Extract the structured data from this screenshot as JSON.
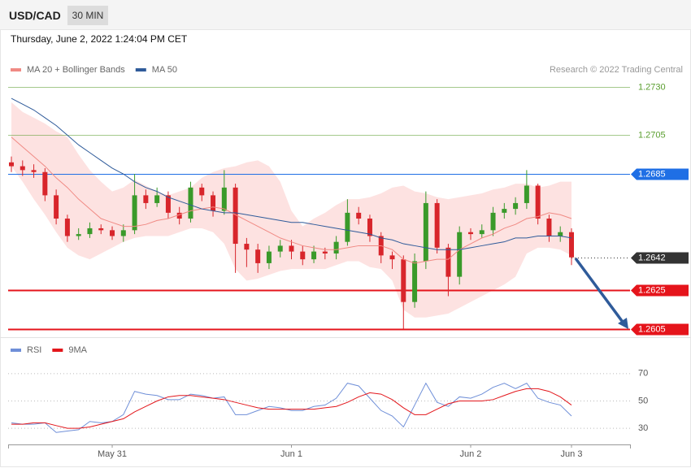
{
  "header": {
    "symbol": "USD/CAD",
    "timeframe": "30 MIN",
    "timestamp": "Thursday, June 2, 2022 1:24:04 PM CET"
  },
  "chart_data": [
    {
      "type": "candlestick",
      "credit": "Research © 2022 Trading Central",
      "categories": [
        null,
        null,
        null,
        null,
        null,
        null,
        null,
        null,
        null,
        "May 31",
        null,
        null,
        null,
        null,
        null,
        null,
        null,
        null,
        null,
        null,
        null,
        null,
        null,
        null,
        null,
        "Jun 1",
        null,
        null,
        null,
        null,
        null,
        null,
        null,
        null,
        null,
        null,
        null,
        null,
        null,
        null,
        null,
        "Jun 2",
        null,
        null,
        null,
        null,
        null,
        null,
        null,
        null,
        "Jun 3"
      ],
      "open": [
        1.2691,
        1.2689,
        1.2687,
        1.2686,
        1.2674,
        1.2662,
        1.2653,
        1.2654,
        1.2657,
        1.2656,
        1.2653,
        1.2656,
        1.2674,
        1.267,
        1.2674,
        1.2665,
        1.2662,
        1.2678,
        1.2674,
        1.2666,
        1.2678,
        1.2649,
        1.2646,
        1.2639,
        1.2645,
        1.2648,
        1.2645,
        1.2641,
        1.2645,
        1.2644,
        1.265,
        1.2665,
        1.2662,
        1.2653,
        1.2643,
        1.2641,
        1.2619,
        1.264,
        1.267,
        1.2647,
        1.2632,
        1.2655,
        1.2654,
        1.2656,
        1.2665,
        1.2667,
        1.267,
        1.2679,
        1.2662,
        1.2653,
        1.2655
      ],
      "high": [
        1.2694,
        1.2692,
        1.269,
        1.2688,
        1.2677,
        1.2664,
        1.2657,
        1.266,
        1.2659,
        1.2658,
        1.2659,
        1.2685,
        1.2677,
        1.2678,
        1.2676,
        1.2668,
        1.2681,
        1.268,
        1.2676,
        1.2687,
        1.268,
        1.2652,
        1.2649,
        1.2648,
        1.2651,
        1.2651,
        1.2648,
        1.2648,
        1.2647,
        1.2653,
        1.2672,
        1.2668,
        1.2664,
        1.2655,
        1.2645,
        1.2643,
        1.2644,
        1.2676,
        1.2672,
        1.2649,
        1.2658,
        1.2657,
        1.2659,
        1.2668,
        1.267,
        1.2673,
        1.2687,
        1.268,
        1.2664,
        1.2658,
        1.2657
      ],
      "low": [
        1.2686,
        1.2684,
        1.2683,
        1.2671,
        1.2659,
        1.265,
        1.2651,
        1.2652,
        1.2654,
        1.2651,
        1.265,
        1.2654,
        1.2667,
        1.2668,
        1.2662,
        1.2659,
        1.266,
        1.2671,
        1.2663,
        1.2664,
        1.2634,
        1.2637,
        1.2634,
        1.2636,
        1.2642,
        1.2641,
        1.2638,
        1.2639,
        1.2641,
        1.2641,
        1.2648,
        1.2659,
        1.265,
        1.2639,
        1.2636,
        1.2605,
        1.2616,
        1.2636,
        1.2644,
        1.2622,
        1.2628,
        1.2651,
        1.2652,
        1.2653,
        1.2662,
        1.2664,
        1.2667,
        1.2659,
        1.265,
        1.265,
        1.2638
      ],
      "close": [
        1.2689,
        1.2687,
        1.2686,
        1.2674,
        1.2662,
        1.2653,
        1.2654,
        1.2657,
        1.2656,
        1.2653,
        1.2656,
        1.2674,
        1.267,
        1.2674,
        1.2665,
        1.2662,
        1.2678,
        1.2674,
        1.2666,
        1.2678,
        1.2649,
        1.2646,
        1.2639,
        1.2645,
        1.2648,
        1.2645,
        1.2641,
        1.2645,
        1.2644,
        1.265,
        1.2665,
        1.2662,
        1.2653,
        1.2643,
        1.2641,
        1.2619,
        1.264,
        1.267,
        1.2647,
        1.2632,
        1.2655,
        1.2654,
        1.2656,
        1.2665,
        1.2667,
        1.267,
        1.2679,
        1.2662,
        1.2653,
        1.2655,
        1.2642
      ],
      "up_color": "#3a9a2a",
      "down_color": "#d8252b",
      "series": [
        {
          "name": "MA 20 + Bollinger Bands",
          "color": "#f08a84",
          "band_color": "#fde2e1",
          "values": [
            1.2704,
            1.2699,
            1.2694,
            1.2689,
            1.2683,
            1.2678,
            1.2672,
            1.2667,
            1.2662,
            1.266,
            1.2658,
            1.2658,
            1.2659,
            1.2661,
            1.2662,
            1.2664,
            1.2666,
            1.2667,
            1.2668,
            1.2667,
            1.2664,
            1.2661,
            1.2658,
            1.2655,
            1.2652,
            1.265,
            1.2648,
            1.2647,
            1.2646,
            1.2646,
            1.2647,
            1.2648,
            1.2648,
            1.2648,
            1.2646,
            1.2641,
            1.2639,
            1.264,
            1.2641,
            1.2641,
            1.2646,
            1.2649,
            1.2652,
            1.2654,
            1.2657,
            1.2659,
            1.2662,
            1.2663,
            1.2665,
            1.2664,
            1.2662
          ],
          "upper": [
            1.2722,
            1.2717,
            1.2714,
            1.2711,
            1.2707,
            1.2704,
            1.2695,
            1.2687,
            1.2681,
            1.2676,
            1.2678,
            1.2682,
            1.2679,
            1.2676,
            1.2674,
            1.2676,
            1.2678,
            1.2683,
            1.2686,
            1.2688,
            1.2689,
            1.2691,
            1.2692,
            1.2689,
            1.2681,
            1.2666,
            1.2658,
            1.2662,
            1.2665,
            1.2669,
            1.2672,
            1.2672,
            1.2673,
            1.2675,
            1.2678,
            1.2679,
            1.2676,
            1.2675,
            1.2673,
            1.2672,
            1.2673,
            1.2674,
            1.2675,
            1.2677,
            1.2678,
            1.268,
            1.268,
            1.2678,
            1.2679,
            1.2681,
            1.2681
          ],
          "lower": [
            1.2689,
            1.2681,
            1.2672,
            1.2664,
            1.2655,
            1.2647,
            1.2643,
            1.2641,
            1.2644,
            1.2647,
            1.265,
            1.2652,
            1.2653,
            1.2653,
            1.2653,
            1.2655,
            1.2657,
            1.2657,
            1.2655,
            1.2649,
            1.2636,
            1.263,
            1.2631,
            1.2633,
            1.2635,
            1.2636,
            1.2636,
            1.2636,
            1.2636,
            1.2638,
            1.264,
            1.264,
            1.2637,
            1.2636,
            1.263,
            1.2615,
            1.2611,
            1.2611,
            1.2612,
            1.2613,
            1.2616,
            1.2619,
            1.2622,
            1.2625,
            1.2628,
            1.2632,
            1.2644,
            1.2647,
            1.2647,
            1.2646,
            1.2643
          ]
        },
        {
          "name": "MA 50",
          "color": "#2f5b9a",
          "values": [
            1.2724,
            1.2721,
            1.2718,
            1.2714,
            1.271,
            1.2705,
            1.27,
            1.2696,
            1.2692,
            1.2688,
            1.2685,
            1.2681,
            1.2678,
            1.2676,
            1.2673,
            1.2671,
            1.2669,
            1.2667,
            1.2666,
            1.2665,
            1.2665,
            1.2664,
            1.2663,
            1.2662,
            1.2661,
            1.266,
            1.266,
            1.2659,
            1.2658,
            1.2657,
            1.2656,
            1.2655,
            1.2654,
            1.2652,
            1.2651,
            1.2649,
            1.2648,
            1.2647,
            1.2646,
            1.2646,
            1.2646,
            1.2647,
            1.2648,
            1.2649,
            1.265,
            1.2652,
            1.2652,
            1.2653,
            1.2653,
            1.2653,
            1.2652
          ]
        }
      ],
      "ylim": [
        1.26,
        1.275
      ],
      "levels": [
        {
          "value": 1.273,
          "label": "1.2730",
          "color": "#5a9e2f",
          "boxed": false
        },
        {
          "value": 1.2705,
          "label": "1.2705",
          "color": "#5a9e2f",
          "boxed": false
        },
        {
          "value": 1.2685,
          "label": "1.2685",
          "color": "#1f6fe5",
          "boxed": true
        },
        {
          "value": 1.2642,
          "label": "1.2642",
          "color": "#333333",
          "boxed": true,
          "dash": true
        },
        {
          "value": 1.2625,
          "label": "1.2625",
          "color": "#e5141b",
          "boxed": true
        },
        {
          "value": 1.2605,
          "label": "1.2605",
          "color": "#e5141b",
          "boxed": true
        }
      ]
    },
    {
      "type": "line",
      "series": [
        {
          "name": "RSI",
          "color": "#6f8fd8",
          "values": [
            34,
            33,
            33,
            34,
            27,
            28,
            29,
            35,
            34,
            35,
            40,
            57,
            55,
            54,
            51,
            51,
            55,
            54,
            52,
            53,
            40,
            40,
            43,
            46,
            45,
            43,
            43,
            46,
            47,
            52,
            63,
            61,
            52,
            43,
            39,
            31,
            47,
            63,
            49,
            46,
            53,
            52,
            55,
            60,
            63,
            59,
            63,
            52,
            49,
            47,
            39
          ]
        },
        {
          "name": "9MA",
          "color": "#e3161b",
          "values": [
            33,
            33,
            34,
            34,
            32,
            30,
            30,
            31,
            33,
            35,
            37,
            42,
            46,
            50,
            53,
            54,
            54,
            53,
            52,
            51,
            49,
            47,
            45,
            44,
            44,
            44,
            44,
            44,
            45,
            46,
            49,
            53,
            56,
            55,
            51,
            45,
            40,
            40,
            44,
            48,
            50,
            50,
            50,
            51,
            54,
            57,
            59,
            59,
            57,
            53,
            47
          ]
        }
      ],
      "ylim": [
        20,
        80
      ],
      "yticks": [
        30,
        50,
        70
      ],
      "grid": true
    }
  ]
}
